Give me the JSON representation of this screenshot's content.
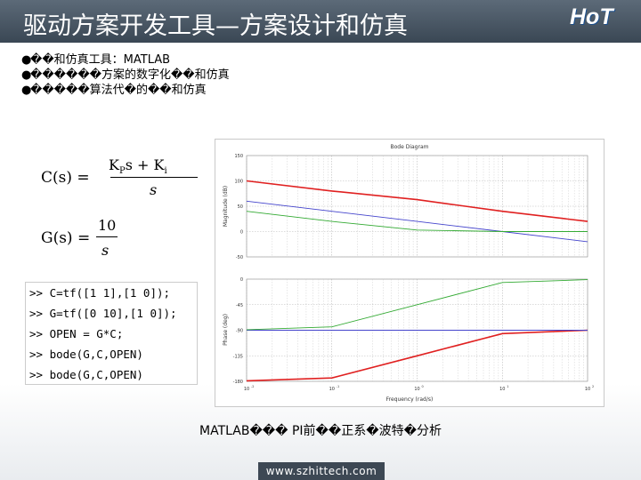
{
  "title": "驱动方案开发工具—方案设计和仿真",
  "logo": {
    "text": "HoT",
    "color": "#ffffff"
  },
  "bullets": [
    "��和仿真工具：MATLAB",
    "������方案的数字化��和仿真",
    "�����算法代�的��和仿真"
  ],
  "formulas": {
    "c": {
      "lhs": "C(s) =",
      "num_k": "K",
      "num_p": "P",
      "num_mid": "s + K",
      "num_i": "i",
      "den": "s"
    },
    "g": {
      "lhs": "G(s) =",
      "num": "10",
      "den": "s"
    }
  },
  "code_lines": [
    ">> C=tf([1 1],[1 0]);",
    ">> G=tf([0 10],[1 0]);",
    ">> OPEN = G*C;",
    ">> bode(G,C,OPEN)",
    ">> bode(G,C,OPEN)"
  ],
  "caption": "MATLAB��� PI前��正系�波特�分析",
  "footer": "www.szhittech.com",
  "colors": {
    "header": "#45525f",
    "accent_red": "#e02020",
    "accent_blue": "#4444cc",
    "accent_green": "#33aa33"
  },
  "chart_data": {
    "type": "line",
    "title": "Bode Diagram",
    "xlabel": "Frequency (rad/s)",
    "x_scale": "log",
    "xlim": [
      0.01,
      100
    ],
    "x_ticks": [
      "10",
      "10",
      "10",
      "10",
      "10"
    ],
    "x_tick_exponents": [
      "-2",
      "-1",
      "0",
      "1",
      "2"
    ],
    "panels": [
      {
        "name": "magnitude",
        "ylabel": "Magnitude (dB)",
        "ylim": [
          -50,
          150
        ],
        "y_ticks": [
          "150",
          "100",
          "50",
          "0",
          "-50"
        ],
        "series": [
          {
            "color": "#e02020",
            "x": [
              0.01,
              0.1,
              1,
              10,
              100
            ],
            "y": [
              100,
              80,
              63,
              40,
              20
            ]
          },
          {
            "color": "#4444cc",
            "x": [
              0.01,
              0.1,
              1,
              10,
              100
            ],
            "y": [
              60,
              40,
              20,
              0,
              -20
            ]
          },
          {
            "color": "#33aa33",
            "x": [
              0.01,
              0.1,
              1,
              10,
              100
            ],
            "y": [
              40,
              20,
              3,
              0,
              0
            ]
          }
        ]
      },
      {
        "name": "phase",
        "ylabel": "Phase (deg)",
        "ylim": [
          -180,
          0
        ],
        "y_ticks": [
          "0",
          "-45",
          "-90",
          "-135",
          "-180"
        ],
        "series": [
          {
            "color": "#e02020",
            "x": [
              0.01,
              0.1,
              1,
              10,
              100
            ],
            "y": [
              -179,
              -174,
              -135,
              -96,
              -90
            ]
          },
          {
            "color": "#4444cc",
            "x": [
              0.01,
              0.1,
              1,
              10,
              100
            ],
            "y": [
              -90,
              -90,
              -90,
              -90,
              -90
            ]
          },
          {
            "color": "#33aa33",
            "x": [
              0.01,
              0.1,
              1,
              10,
              100
            ],
            "y": [
              -89,
              -84,
              -45,
              -6,
              -1
            ]
          }
        ]
      }
    ],
    "grid": true
  }
}
